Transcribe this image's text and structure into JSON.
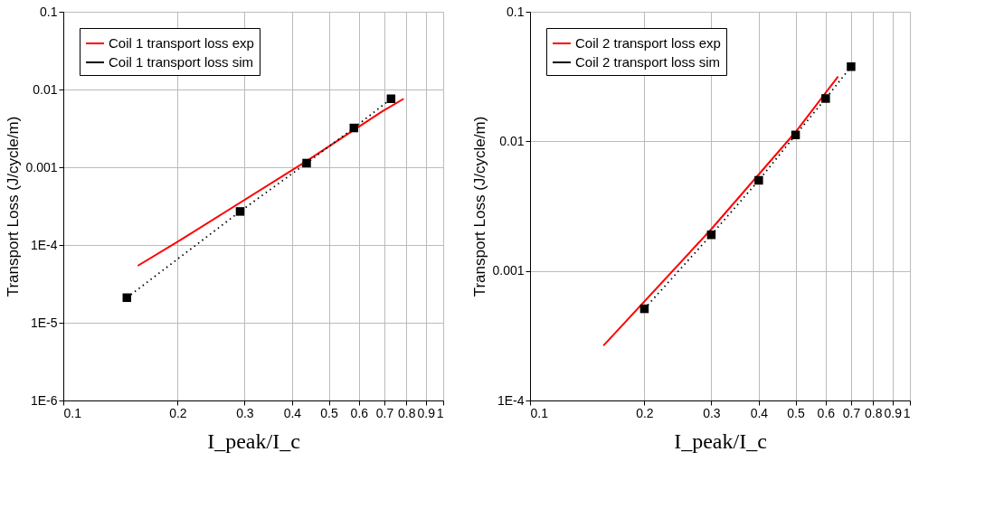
{
  "chart_data": [
    {
      "type": "line",
      "xlabel": "I_peak/I_c",
      "ylabel": "Transport Loss (J/cycle/m)",
      "log": "xy",
      "grid": true,
      "legend": "top left",
      "xlim": [
        0.1,
        1
      ],
      "xticks": [
        0.1,
        0.2,
        0.3,
        0.4,
        0.5,
        0.6,
        0.7,
        0.8,
        0.9,
        1
      ],
      "ylim": [
        1e-06,
        0.1
      ],
      "yticks": [
        {
          "value": 1e-06,
          "label": "1E-6"
        },
        {
          "value": 1e-05,
          "label": "1E-5"
        },
        {
          "value": 0.0001,
          "label": "1E-4"
        },
        0.001,
        0.01,
        0.1
      ],
      "series": [
        {
          "name": "Coil 1 transport loss exp",
          "color": "#ff0000",
          "line_style": "solid",
          "marker": "none",
          "x": [
            0.157,
            0.2,
            0.437,
            0.69,
            0.787
          ],
          "values": [
            5.4e-05,
            0.00011,
            0.0012,
            0.0052,
            0.0076
          ]
        },
        {
          "name": "Coil 1 transport loss sim",
          "color": "#000000",
          "line_style": "dotted",
          "marker": "square",
          "x": [
            0.147,
            0.292,
            0.437,
            0.582,
            0.729
          ],
          "values": [
            2.1e-05,
            0.00027,
            0.00113,
            0.0032,
            0.0076
          ]
        }
      ]
    },
    {
      "type": "line",
      "xlabel": "I_peak/I_c",
      "ylabel": "Transport Loss (J/cycle/m)",
      "log": "xy",
      "grid": true,
      "legend": "top left",
      "xlim": [
        0.1,
        1
      ],
      "xticks": [
        0.1,
        0.2,
        0.3,
        0.4,
        0.5,
        0.6,
        0.7,
        0.8,
        0.9,
        1
      ],
      "ylim": [
        0.0001,
        0.1
      ],
      "yticks": [
        {
          "value": 0.0001,
          "label": "1E-4"
        },
        0.001,
        0.01,
        0.1
      ],
      "series": [
        {
          "name": "Coil 2 transport loss exp",
          "color": "#ff0000",
          "line_style": "solid",
          "marker": "none",
          "x": [
            0.156,
            0.3,
            0.5,
            0.647
          ],
          "values": [
            0.000265,
            0.0021,
            0.0118,
            0.0316
          ]
        },
        {
          "name": "Coil 2 transport loss sim",
          "color": "#000000",
          "line_style": "dotted",
          "marker": "square",
          "x": [
            0.2,
            0.3,
            0.4,
            0.5,
            0.6,
            0.7
          ],
          "values": [
            0.00051,
            0.0019,
            0.005,
            0.0112,
            0.0214,
            0.0377
          ]
        }
      ]
    }
  ]
}
